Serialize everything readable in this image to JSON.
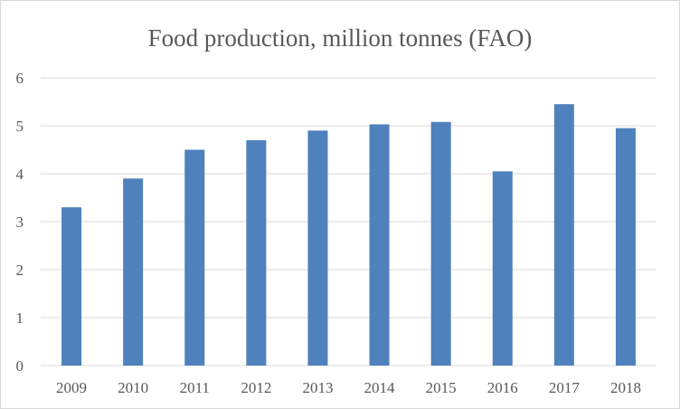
{
  "chart_data": {
    "type": "bar",
    "title": "Food production, million tonnes (FAO)",
    "xlabel": "",
    "ylabel": "",
    "categories": [
      "2009",
      "2010",
      "2011",
      "2012",
      "2013",
      "2014",
      "2015",
      "2016",
      "2017",
      "2018"
    ],
    "values": [
      3.3,
      3.9,
      4.5,
      4.7,
      4.9,
      5.03,
      5.08,
      4.05,
      5.45,
      4.95
    ],
    "ylim": [
      0,
      6
    ],
    "yticks": [
      "0",
      "1",
      "2",
      "3",
      "4",
      "5",
      "6"
    ],
    "grid": true,
    "legend": "none",
    "colors": {
      "bar": "#4f81bd",
      "grid": "#d9d9d9",
      "text": "#595959"
    }
  }
}
